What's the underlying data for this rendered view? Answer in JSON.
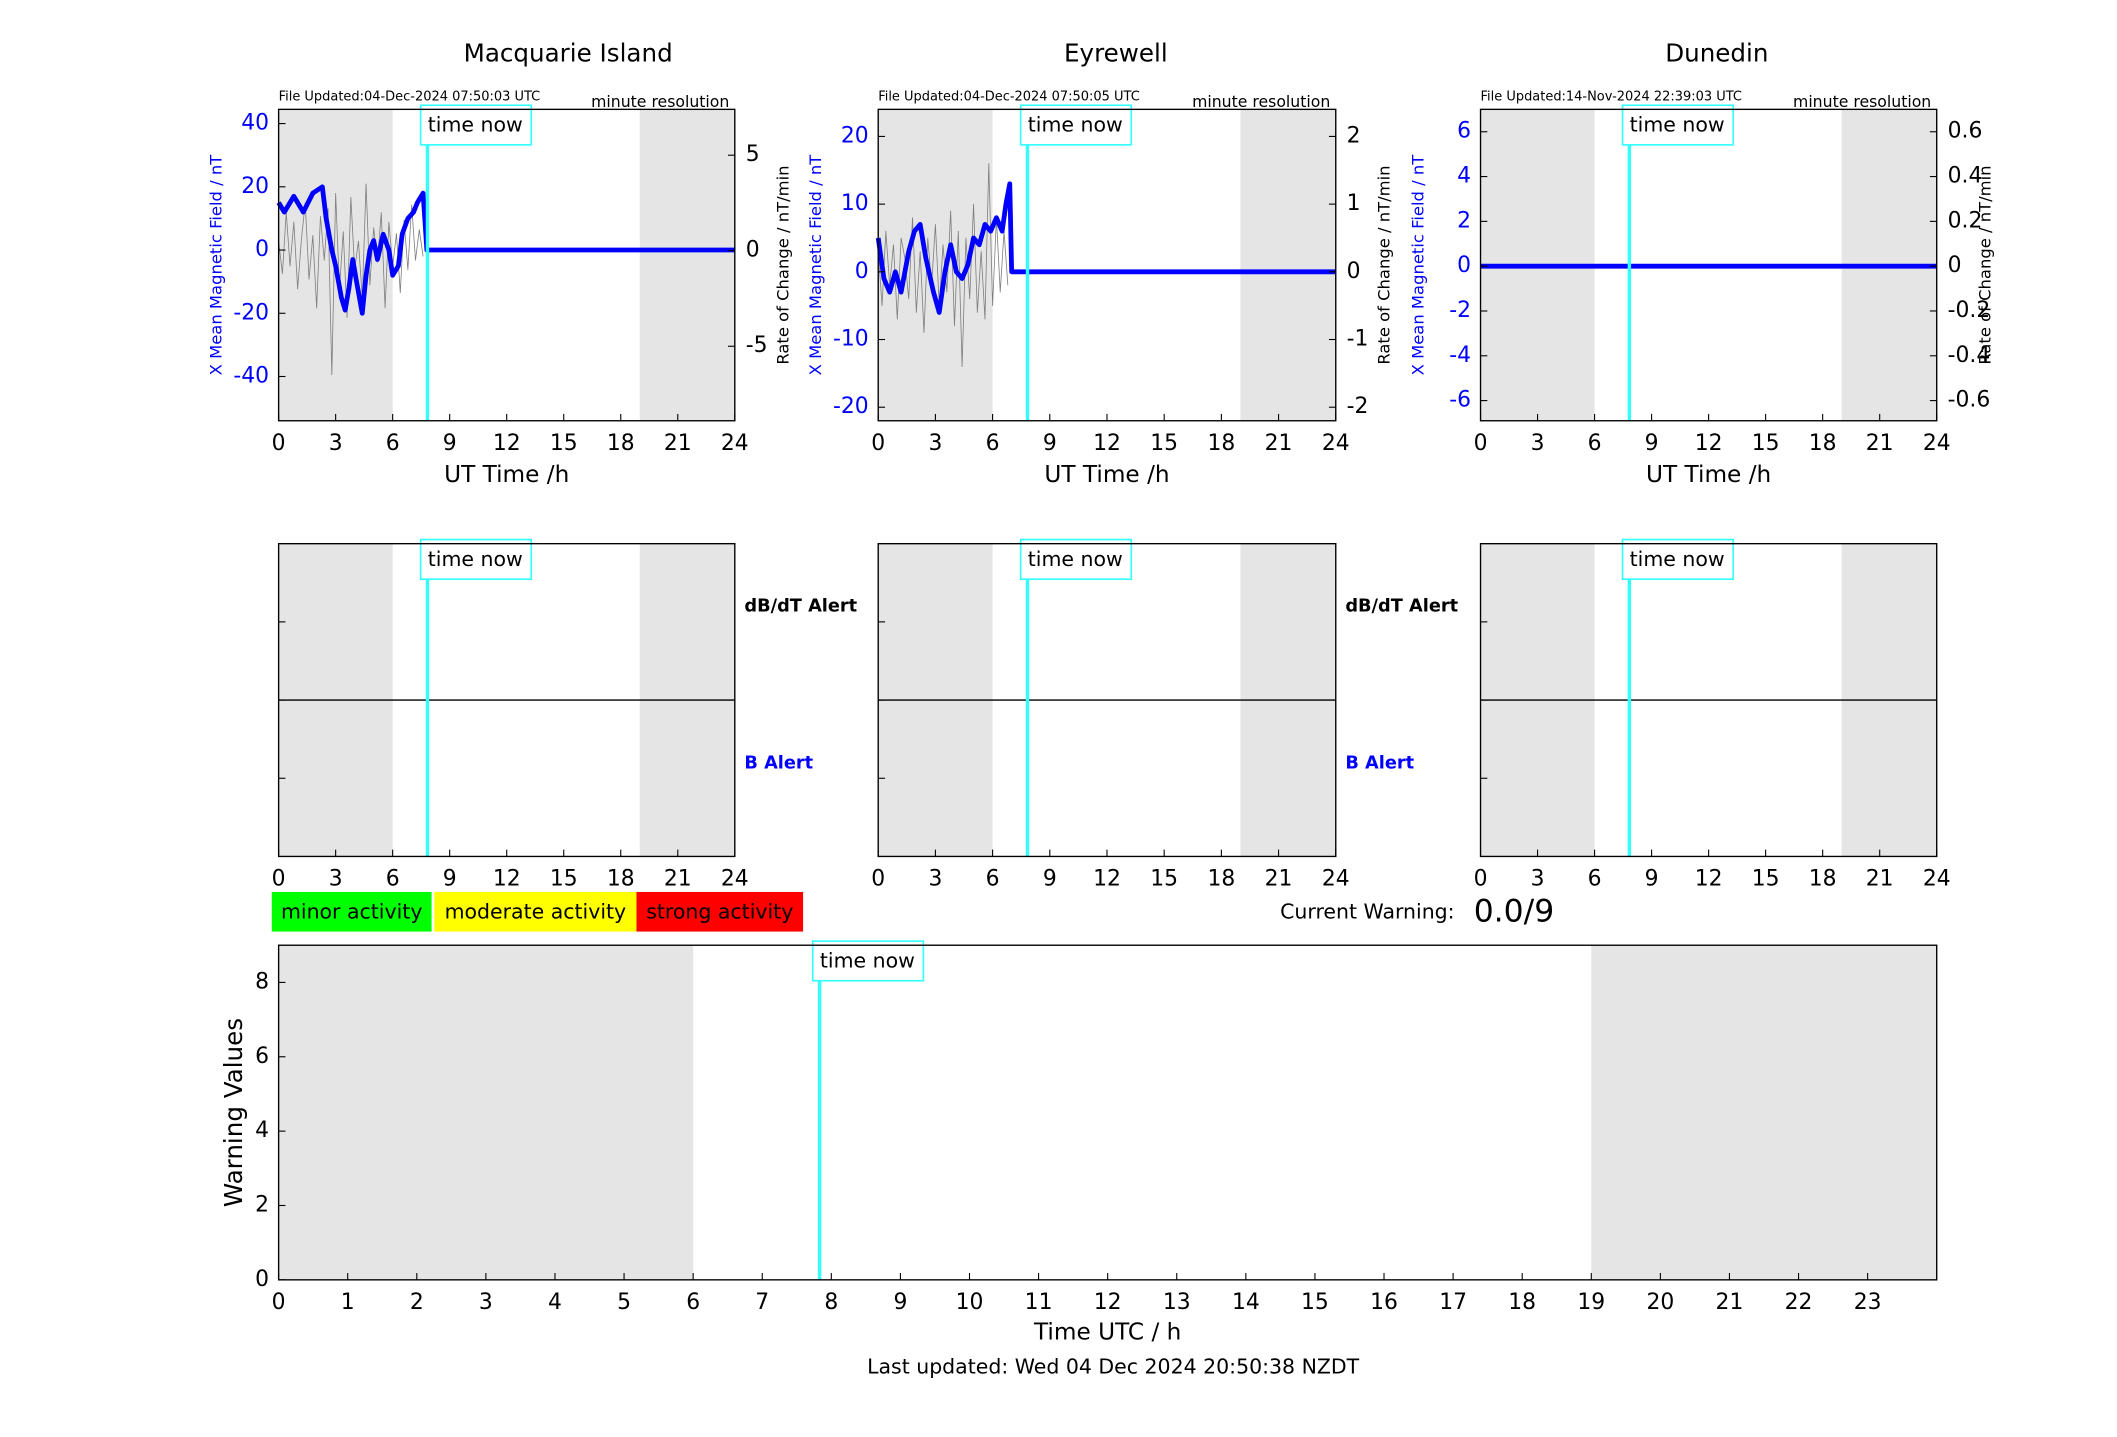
{
  "chart_data": [
    {
      "type": "line",
      "title": "Macquarie Island",
      "file_updated": "File Updated:04-Dec-2024 07:50:03 UTC",
      "resolution": "minute resolution",
      "time_now_label": "time now",
      "time_now": 7.83,
      "xlabel": "UT Time /h",
      "ylabel": "X Mean Magnetic Field / nT",
      "y2label": "Rate of Change / nT/min",
      "ycolor": "#0000ff",
      "xlim": [
        0,
        24
      ],
      "xticks": [
        0,
        3,
        6,
        9,
        12,
        15,
        18,
        21,
        24
      ],
      "ylim": [
        -54,
        44.5
      ],
      "yticks": [
        -40,
        -20,
        0,
        20,
        40
      ],
      "y2lim": [
        -8.9,
        7.4
      ],
      "y2ticks": [
        -5,
        0,
        5
      ],
      "shaded": [
        [
          0,
          6
        ],
        [
          19,
          24
        ]
      ],
      "series": [
        {
          "color": "#808080",
          "axis": "y2",
          "x": [
            0,
            0.2,
            0.4,
            0.6,
            0.8,
            1,
            1.2,
            1.4,
            1.6,
            1.8,
            2,
            2.2,
            2.4,
            2.6,
            2.8,
            3,
            3.2,
            3.4,
            3.6,
            3.8,
            4,
            4.2,
            4.4,
            4.6,
            4.8,
            5,
            5.2,
            5.4,
            5.6,
            5.8,
            6,
            6.2,
            6.4,
            6.6,
            6.8,
            7,
            7.2,
            7.4,
            7.6
          ],
          "values": [
            0.5,
            -1.2,
            2.0,
            -0.8,
            1.5,
            -2.0,
            0.6,
            2.5,
            -1.5,
            0.8,
            -3.0,
            1.8,
            -0.5,
            2.2,
            -6.5,
            3.0,
            -2.0,
            1.0,
            -3.5,
            2.8,
            -1.0,
            0.5,
            -2.5,
            3.5,
            -1.8,
            1.2,
            -0.6,
            2.0,
            -3.0,
            1.5,
            -0.8,
            0.9,
            -2.2,
            1.6,
            -1.0,
            2.4,
            -0.5,
            1.1,
            -0.3
          ]
        },
        {
          "color": "#0000ff",
          "x": [
            0,
            0.3,
            0.8,
            1.3,
            1.8,
            2.3,
            2.5,
            2.8,
            3.0,
            3.3,
            3.5,
            3.7,
            3.9,
            4.1,
            4.4,
            4.6,
            4.8,
            5.0,
            5.2,
            5.5,
            5.8,
            6.0,
            6.3,
            6.5,
            6.8,
            7.1,
            7.3,
            7.6,
            7.8,
            24
          ],
          "values": [
            15,
            12,
            17,
            12,
            18,
            20,
            10,
            0,
            -5,
            -15,
            -19,
            -12,
            -3,
            -10,
            -20,
            -8,
            0,
            3,
            -3,
            5,
            0,
            -8,
            -5,
            5,
            10,
            12,
            15,
            18,
            0,
            0
          ]
        }
      ]
    },
    {
      "type": "line",
      "title": "Eyrewell",
      "file_updated": "File Updated:04-Dec-2024 07:50:05 UTC",
      "resolution": "minute resolution",
      "time_now_label": "time now",
      "time_now": 7.83,
      "xlabel": "UT Time /h",
      "ylabel": "X Mean Magnetic Field / nT",
      "y2label": "Rate of Change / nT/min",
      "ycolor": "#0000ff",
      "xlim": [
        0,
        24
      ],
      "xticks": [
        0,
        3,
        6,
        9,
        12,
        15,
        18,
        21,
        24
      ],
      "ylim": [
        -22,
        24
      ],
      "yticks": [
        -20,
        -10,
        0,
        10,
        20
      ],
      "y2lim": [
        -2.2,
        2.4
      ],
      "y2ticks": [
        -2,
        -1,
        0,
        1,
        2
      ],
      "shaded": [
        [
          0,
          6
        ],
        [
          19,
          24
        ]
      ],
      "series": [
        {
          "color": "#808080",
          "axis": "y2",
          "x": [
            0,
            0.2,
            0.4,
            0.6,
            0.8,
            1,
            1.2,
            1.4,
            1.6,
            1.8,
            2,
            2.2,
            2.4,
            2.6,
            2.8,
            3,
            3.2,
            3.4,
            3.6,
            3.8,
            4,
            4.2,
            4.4,
            4.6,
            4.8,
            5,
            5.2,
            5.4,
            5.6,
            5.8,
            6,
            6.2,
            6.4,
            6.6,
            6.8
          ],
          "values": [
            0.3,
            -0.5,
            0.6,
            -0.2,
            0.4,
            -0.7,
            0.5,
            0.2,
            -0.4,
            0.8,
            -0.6,
            0.3,
            -0.9,
            0.5,
            -0.2,
            0.7,
            -0.5,
            0.4,
            -0.3,
            0.9,
            -0.8,
            0.6,
            -1.4,
            0.5,
            -0.4,
            1.0,
            -0.6,
            0.3,
            -0.7,
            1.6,
            -0.5,
            0.8,
            -0.3,
            0.6,
            -0.2
          ]
        },
        {
          "color": "#0000ff",
          "x": [
            0,
            0.3,
            0.6,
            0.9,
            1.2,
            1.6,
            1.9,
            2.2,
            2.5,
            2.9,
            3.2,
            3.5,
            3.8,
            4.1,
            4.4,
            4.7,
            5.0,
            5.3,
            5.6,
            5.9,
            6.2,
            6.5,
            6.7,
            6.9,
            7.0,
            24
          ],
          "values": [
            5,
            -1,
            -3,
            0,
            -3,
            3,
            6,
            7,
            2,
            -3,
            -6,
            0,
            4,
            0,
            -1,
            1,
            5,
            4,
            7,
            6,
            8,
            6,
            10,
            13,
            0,
            0
          ]
        }
      ]
    },
    {
      "type": "line",
      "title": "Dunedin",
      "file_updated": "File Updated:14-Nov-2024 22:39:03 UTC",
      "resolution": "minute resolution",
      "time_now_label": "time now",
      "time_now": 7.83,
      "xlabel": "UT Time /h",
      "ylabel": "X Mean Magnetic Field / nT",
      "y2label": "Rate of Change / nT/min",
      "ycolor": "#0000ff",
      "xlim": [
        0,
        24
      ],
      "xticks": [
        0,
        3,
        6,
        9,
        12,
        15,
        18,
        21,
        24
      ],
      "ylim": [
        -6.9,
        7
      ],
      "yticks": [
        -6,
        -4,
        -2,
        0,
        2,
        4,
        6
      ],
      "y2lim": [
        -0.69,
        0.7
      ],
      "y2ticks": [
        -0.6,
        -0.4,
        -0.2,
        0,
        0.2,
        0.4,
        0.6
      ],
      "shaded": [
        [
          0,
          6
        ],
        [
          19,
          24
        ]
      ],
      "series": [
        {
          "color": "#0000ff",
          "x": [
            0,
            24
          ],
          "values": [
            0,
            0
          ]
        }
      ]
    },
    {
      "type": "alert",
      "time_now_label": "time now",
      "time_now": 7.83,
      "xlim": [
        0,
        24
      ],
      "xticks": [
        0,
        3,
        6,
        9,
        12,
        15,
        18,
        21,
        24
      ],
      "shaded": [
        [
          0,
          6
        ],
        [
          19,
          24
        ]
      ],
      "alert_labels": [
        {
          "text": "dB/dT Alert",
          "color": "#000000"
        },
        {
          "text": "B Alert",
          "color": "#0000ff"
        }
      ]
    },
    {
      "type": "alert",
      "time_now_label": "time now",
      "time_now": 7.83,
      "xlim": [
        0,
        24
      ],
      "xticks": [
        0,
        3,
        6,
        9,
        12,
        15,
        18,
        21,
        24
      ],
      "shaded": [
        [
          0,
          6
        ],
        [
          19,
          24
        ]
      ],
      "alert_labels": [
        {
          "text": "dB/dT Alert",
          "color": "#000000"
        },
        {
          "text": "B Alert",
          "color": "#0000ff"
        }
      ]
    },
    {
      "type": "alert",
      "time_now_label": "time now",
      "time_now": 7.83,
      "xlim": [
        0,
        24
      ],
      "xticks": [
        0,
        3,
        6,
        9,
        12,
        15,
        18,
        21,
        24
      ],
      "shaded": [
        [
          0,
          6
        ],
        [
          19,
          24
        ]
      ]
    },
    {
      "type": "warning",
      "time_now_label": "time now",
      "time_now": 7.83,
      "xlabel": "Time UTC / h",
      "ylabel": "Warning Values",
      "xlim": [
        0,
        24
      ],
      "xticks": [
        0,
        1,
        2,
        3,
        4,
        5,
        6,
        7,
        8,
        9,
        10,
        11,
        12,
        13,
        14,
        15,
        16,
        17,
        18,
        19,
        20,
        21,
        22,
        23
      ],
      "ylim": [
        0,
        9
      ],
      "yticks": [
        0,
        2,
        4,
        6,
        8
      ],
      "shaded": [
        [
          0,
          6
        ],
        [
          19,
          24
        ]
      ],
      "levels": [
        {
          "label": "minor activity",
          "color": "#00ff00"
        },
        {
          "label": "moderate activity",
          "color": "#ffff00"
        },
        {
          "label": "strong activity",
          "color": "#ff0000"
        }
      ],
      "current_warning_label": "Current Warning:",
      "current_warning": "0.0/9",
      "footer": "Last updated: Wed 04 Dec 2024 20:50:38 NZDT"
    }
  ]
}
